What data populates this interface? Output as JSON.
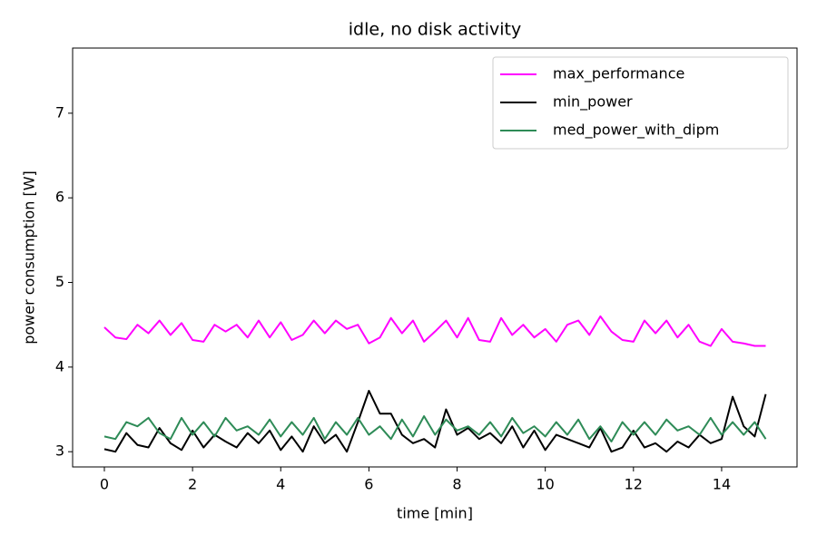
{
  "chart_data": {
    "type": "line",
    "title": "idle, no disk activity",
    "xlabel": "time [min]",
    "ylabel": "power consumption [W]",
    "x": [
      0,
      0.25,
      0.5,
      0.75,
      1,
      1.25,
      1.5,
      1.75,
      2,
      2.25,
      2.5,
      2.75,
      3,
      3.25,
      3.5,
      3.75,
      4,
      4.25,
      4.5,
      4.75,
      5,
      5.25,
      5.5,
      5.75,
      6,
      6.25,
      6.5,
      6.75,
      7,
      7.25,
      7.5,
      7.75,
      8,
      8.25,
      8.5,
      8.75,
      9,
      9.25,
      9.5,
      9.75,
      10,
      10.25,
      10.5,
      10.75,
      11,
      11.25,
      11.5,
      11.75,
      12,
      12.25,
      12.5,
      12.75,
      13,
      13.25,
      13.5,
      13.75,
      14,
      14.25,
      14.5,
      14.75,
      15
    ],
    "series": [
      {
        "name": "max_performance",
        "color": "#ff00ff",
        "values": [
          4.47,
          4.35,
          4.33,
          4.5,
          4.4,
          4.55,
          4.38,
          4.52,
          4.32,
          4.3,
          4.5,
          4.42,
          4.5,
          4.35,
          4.55,
          4.35,
          4.53,
          4.32,
          4.38,
          4.55,
          4.4,
          4.55,
          4.45,
          4.5,
          4.28,
          4.35,
          4.58,
          4.4,
          4.55,
          4.3,
          4.42,
          4.55,
          4.35,
          4.58,
          4.32,
          4.3,
          4.58,
          4.38,
          4.5,
          4.35,
          4.45,
          4.3,
          4.5,
          4.55,
          4.38,
          4.6,
          4.42,
          4.32,
          4.3,
          4.55,
          4.4,
          4.55,
          4.35,
          4.5,
          4.3,
          4.25,
          4.45,
          4.3,
          4.28,
          4.25,
          4.25
        ]
      },
      {
        "name": "min_power",
        "color": "#000000",
        "values": [
          3.03,
          3.0,
          3.22,
          3.08,
          3.05,
          3.28,
          3.1,
          3.02,
          3.25,
          3.05,
          3.2,
          3.12,
          3.05,
          3.22,
          3.1,
          3.25,
          3.02,
          3.18,
          3.0,
          3.3,
          3.1,
          3.2,
          3.0,
          3.35,
          3.72,
          3.45,
          3.45,
          3.2,
          3.1,
          3.15,
          3.05,
          3.5,
          3.2,
          3.28,
          3.15,
          3.22,
          3.1,
          3.3,
          3.05,
          3.25,
          3.02,
          3.2,
          3.15,
          3.1,
          3.05,
          3.28,
          3.0,
          3.05,
          3.25,
          3.05,
          3.1,
          3.0,
          3.12,
          3.05,
          3.2,
          3.1,
          3.15,
          3.65,
          3.3,
          3.18,
          3.68
        ]
      },
      {
        "name": "med_power_with_dipm",
        "color": "#2e8b57",
        "values": [
          3.18,
          3.15,
          3.35,
          3.3,
          3.4,
          3.22,
          3.15,
          3.4,
          3.2,
          3.35,
          3.18,
          3.4,
          3.25,
          3.3,
          3.2,
          3.38,
          3.18,
          3.35,
          3.2,
          3.4,
          3.15,
          3.35,
          3.2,
          3.4,
          3.2,
          3.3,
          3.15,
          3.38,
          3.18,
          3.42,
          3.2,
          3.38,
          3.25,
          3.3,
          3.2,
          3.35,
          3.18,
          3.4,
          3.22,
          3.3,
          3.18,
          3.35,
          3.2,
          3.38,
          3.15,
          3.3,
          3.12,
          3.35,
          3.2,
          3.35,
          3.2,
          3.38,
          3.25,
          3.3,
          3.2,
          3.4,
          3.2,
          3.35,
          3.2,
          3.35,
          3.15
        ]
      }
    ],
    "xlim": [
      -0.72,
      15.71
    ],
    "ylim": [
      2.82,
      7.77
    ],
    "xticks": [
      0,
      2,
      4,
      6,
      8,
      10,
      12,
      14
    ],
    "yticks": [
      3,
      4,
      5,
      6,
      7
    ],
    "legend": "upper right"
  }
}
